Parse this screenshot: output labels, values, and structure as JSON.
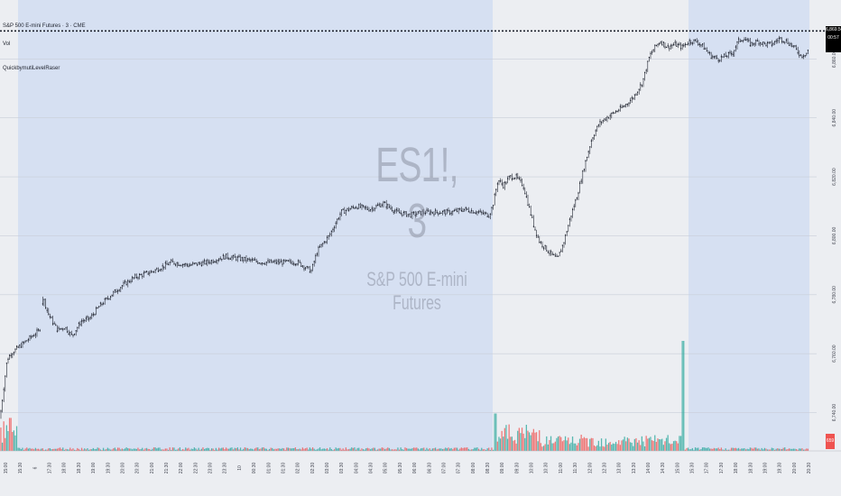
{
  "header": {
    "symbol_title": "S&P 500 E-mini Futures · 3 · CME",
    "sub_label": "Vol",
    "indicator_label": "QuickbymutiLevelRaser"
  },
  "watermark": {
    "ticker": "ES1!, 3",
    "name": "S&P 500 E-mini Futures"
  },
  "price_badge": {
    "price": "6,869.50",
    "countdown": "00:57",
    "color": "#000000"
  },
  "volume_badge": {
    "value": "659",
    "color": "#ef5350"
  },
  "colors": {
    "background": "#eceef2",
    "session_shade": "#d6e0f2",
    "candle": "#1e222d",
    "volume_up": "#26a69a",
    "volume_down": "#ef5350"
  },
  "chart_data": {
    "type": "candlestick",
    "y_ticks": [
      6740,
      6760,
      6780,
      6800,
      6820,
      6840,
      6860
    ],
    "y_tick_labels": [
      "6,740.00",
      "6,760.00",
      "6,780.00",
      "6,800.00",
      "6,820.00",
      "6,840.00",
      "6,860.00"
    ],
    "ylim": [
      6727,
      6880
    ],
    "current_price": 6869.5,
    "x_tick_labels": [
      "15:00",
      "15:30",
      "6",
      "17:30",
      "18:00",
      "18:30",
      "19:00",
      "19:30",
      "20:00",
      "20:30",
      "21:00",
      "21:30",
      "22:00",
      "22:30",
      "23:00",
      "23:30",
      "10",
      "00:30",
      "01:00",
      "01:30",
      "02:00",
      "02:30",
      "03:00",
      "03:30",
      "04:00",
      "04:30",
      "05:00",
      "05:30",
      "06:00",
      "06:30",
      "07:00",
      "07:30",
      "08:00",
      "08:30",
      "09:00",
      "09:30",
      "10:00",
      "10:30",
      "11:00",
      "11:30",
      "12:00",
      "12:30",
      "13:00",
      "13:30",
      "14:00",
      "14:30",
      "15:00",
      "15:30",
      "17:00",
      "17:30",
      "18:00",
      "18:30",
      "19:00",
      "19:30",
      "20:00",
      "20:30"
    ],
    "price_path": [
      [
        0,
        6738
      ],
      [
        4,
        6748
      ],
      [
        8,
        6758
      ],
      [
        12,
        6760
      ],
      [
        20,
        6762
      ],
      [
        28,
        6764
      ],
      [
        36,
        6766
      ],
      [
        44,
        6768
      ],
      [
        48,
        6779
      ],
      [
        53,
        6774
      ],
      [
        58,
        6771
      ],
      [
        64,
        6768
      ],
      [
        72,
        6769
      ],
      [
        80,
        6766
      ],
      [
        90,
        6771
      ],
      [
        100,
        6772
      ],
      [
        110,
        6776
      ],
      [
        120,
        6779
      ],
      [
        135,
        6783
      ],
      [
        150,
        6786
      ],
      [
        170,
        6788
      ],
      [
        190,
        6791
      ],
      [
        210,
        6790
      ],
      [
        230,
        6791
      ],
      [
        250,
        6793
      ],
      [
        270,
        6792
      ],
      [
        290,
        6791
      ],
      [
        310,
        6791
      ],
      [
        330,
        6791
      ],
      [
        345,
        6788
      ],
      [
        352,
        6795
      ],
      [
        365,
        6800
      ],
      [
        378,
        6808
      ],
      [
        395,
        6810
      ],
      [
        410,
        6809
      ],
      [
        425,
        6811
      ],
      [
        440,
        6808
      ],
      [
        455,
        6807
      ],
      [
        470,
        6808
      ],
      [
        485,
        6808
      ],
      [
        500,
        6808
      ],
      [
        515,
        6809
      ],
      [
        530,
        6808
      ],
      [
        542,
        6807
      ],
      [
        546,
        6810
      ],
      [
        552,
        6819
      ],
      [
        558,
        6817
      ],
      [
        565,
        6820
      ],
      [
        572,
        6820
      ],
      [
        580,
        6817
      ],
      [
        586,
        6810
      ],
      [
        592,
        6803
      ],
      [
        598,
        6798
      ],
      [
        604,
        6796
      ],
      [
        610,
        6794
      ],
      [
        618,
        6792
      ],
      [
        625,
        6798
      ],
      [
        632,
        6806
      ],
      [
        640,
        6814
      ],
      [
        648,
        6824
      ],
      [
        656,
        6833
      ],
      [
        664,
        6838
      ],
      [
        672,
        6840
      ],
      [
        682,
        6842
      ],
      [
        692,
        6844
      ],
      [
        702,
        6847
      ],
      [
        712,
        6852
      ],
      [
        720,
        6861
      ],
      [
        726,
        6864
      ],
      [
        732,
        6866
      ],
      [
        740,
        6864
      ],
      [
        748,
        6865
      ],
      [
        756,
        6864
      ],
      [
        764,
        6866
      ],
      [
        772,
        6866
      ],
      [
        780,
        6864
      ],
      [
        788,
        6861
      ],
      [
        796,
        6860
      ],
      [
        804,
        6861
      ],
      [
        812,
        6862
      ],
      [
        818,
        6866
      ],
      [
        824,
        6867
      ],
      [
        832,
        6865
      ],
      [
        840,
        6866
      ],
      [
        848,
        6865
      ],
      [
        856,
        6865
      ],
      [
        864,
        6867
      ],
      [
        872,
        6866
      ],
      [
        880,
        6864
      ],
      [
        888,
        6861
      ],
      [
        894,
        6862
      ],
      [
        897,
        6864
      ]
    ],
    "volume_spikes": [
      {
        "x": 549,
        "value": 0.34,
        "color": "up"
      },
      {
        "x": 757,
        "value": 1.0,
        "color": "up"
      },
      {
        "x": 11,
        "value": 0.3,
        "color": "down"
      }
    ]
  }
}
